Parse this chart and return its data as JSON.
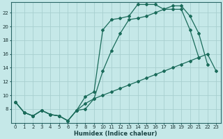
{
  "xlabel": "Humidex (Indice chaleur)",
  "background_color": "#c5e8e8",
  "grid_color": "#a8cfcf",
  "line_color": "#1a6b5a",
  "xlim": [
    -0.5,
    23.5
  ],
  "ylim": [
    6,
    23.5
  ],
  "yticks": [
    8,
    10,
    12,
    14,
    16,
    18,
    20,
    22
  ],
  "xticks": [
    0,
    1,
    2,
    3,
    4,
    5,
    6,
    7,
    8,
    9,
    10,
    11,
    12,
    13,
    14,
    15,
    16,
    17,
    18,
    19,
    20,
    21,
    22,
    23
  ],
  "line1_x": [
    0,
    1,
    2,
    3,
    4,
    5,
    6,
    7,
    8,
    9,
    10,
    11,
    12,
    13,
    14,
    15,
    16,
    17,
    18,
    19,
    20,
    21,
    22,
    23
  ],
  "line1_y": [
    9.0,
    7.5,
    7.0,
    7.8,
    7.2,
    7.0,
    6.3,
    7.8,
    8.8,
    9.5,
    10.0,
    10.5,
    11.0,
    11.5,
    12.0,
    12.5,
    13.0,
    13.5,
    14.0,
    14.5,
    15.0,
    15.5,
    16.0,
    13.5
  ],
  "line2_x": [
    0,
    1,
    2,
    3,
    4,
    5,
    6,
    7,
    8,
    9,
    10,
    11,
    12,
    13,
    14,
    15,
    16,
    17,
    18,
    19,
    20,
    21,
    22,
    23
  ],
  "line2_y": [
    9.0,
    7.5,
    7.0,
    7.8,
    7.2,
    7.0,
    6.3,
    7.8,
    8.0,
    9.5,
    13.5,
    16.5,
    19.0,
    21.0,
    21.2,
    21.5,
    22.0,
    22.5,
    23.0,
    23.0,
    21.5,
    19.0,
    14.5,
    null
  ],
  "line3_x": [
    0,
    1,
    2,
    3,
    4,
    5,
    6,
    7,
    8,
    9,
    10,
    11,
    12,
    13,
    14,
    15,
    16,
    17,
    18,
    19,
    20,
    21,
    22,
    23
  ],
  "line3_y": [
    9.0,
    7.5,
    7.0,
    7.8,
    7.2,
    7.0,
    6.3,
    7.8,
    9.8,
    10.5,
    19.5,
    21.0,
    21.2,
    21.5,
    23.2,
    23.2,
    23.2,
    22.5,
    22.5,
    22.5,
    19.5,
    15.5,
    null,
    null
  ]
}
